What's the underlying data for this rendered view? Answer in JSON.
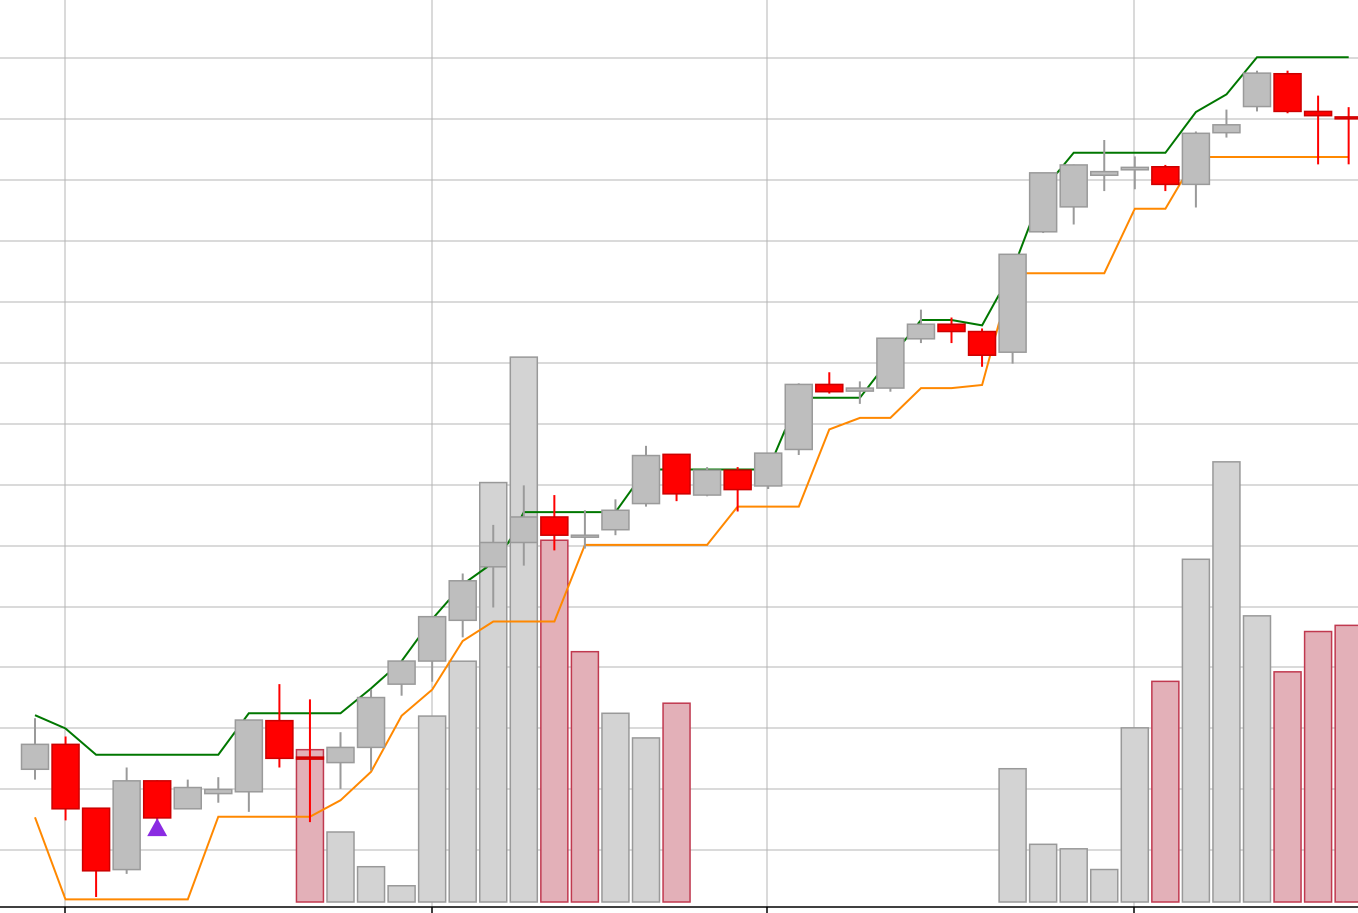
{
  "colors": {
    "background": "#ffffff",
    "grid": "#b4b4b4",
    "bull_fill": "#bebebe",
    "bull_stroke": "#9a9a9a",
    "bear_fill": "#ff0000",
    "bear_stroke": "#cc0000",
    "volume_up_fill": "#d3d3d3",
    "volume_up_stroke": "#999999",
    "volume_down_fill": "#e3b0b8",
    "volume_down_stroke": "#c0394f",
    "upper_channel": "#007700",
    "lower_channel": "#ff8800",
    "signal_marker": "#8a2be2"
  },
  "chart_data": {
    "type": "candlestick",
    "title": "",
    "xlabel": "",
    "ylabel": "",
    "grid": true,
    "x_range": [
      0,
      44
    ],
    "price_range": [
      0,
      15
    ],
    "volume_range": [
      0,
      100
    ],
    "candles": [
      {
        "x": 1,
        "open": 2.15,
        "close": 2.56,
        "high": 2.99,
        "low": 1.98
      },
      {
        "x": 2,
        "open": 2.56,
        "close": 1.5,
        "high": 2.69,
        "low": 1.31
      },
      {
        "x": 3,
        "open": 1.51,
        "close": 0.48,
        "high": 1.52,
        "low": 0.05
      },
      {
        "x": 4,
        "open": 0.5,
        "close": 1.96,
        "high": 2.18,
        "low": 0.43
      },
      {
        "x": 5,
        "open": 1.96,
        "close": 1.35,
        "high": 1.97,
        "low": 1.31
      },
      {
        "x": 6,
        "open": 1.5,
        "close": 1.85,
        "high": 1.98,
        "low": 1.5
      },
      {
        "x": 7,
        "open": 1.75,
        "close": 1.82,
        "high": 2.02,
        "low": 1.6
      },
      {
        "x": 8,
        "open": 1.78,
        "close": 2.96,
        "high": 2.96,
        "low": 1.45
      },
      {
        "x": 9,
        "open": 2.95,
        "close": 2.33,
        "high": 3.55,
        "low": 2.18
      },
      {
        "x": 10,
        "open": 2.35,
        "close": 2.34,
        "high": 3.3,
        "low": 1.28
      },
      {
        "x": 11,
        "open": 2.26,
        "close": 2.51,
        "high": 2.76,
        "low": 1.83
      },
      {
        "x": 12,
        "open": 2.51,
        "close": 3.33,
        "high": 3.46,
        "low": 2.13
      },
      {
        "x": 13,
        "open": 3.55,
        "close": 3.93,
        "high": 3.94,
        "low": 3.36
      },
      {
        "x": 14,
        "open": 3.93,
        "close": 4.66,
        "high": 4.66,
        "low": 3.59
      },
      {
        "x": 15,
        "open": 4.6,
        "close": 5.25,
        "high": 5.37,
        "low": 4.32
      },
      {
        "x": 16,
        "open": 5.48,
        "close": 5.88,
        "high": 6.17,
        "low": 4.81
      },
      {
        "x": 17,
        "open": 5.88,
        "close": 6.3,
        "high": 6.82,
        "low": 5.5
      },
      {
        "x": 18,
        "open": 6.3,
        "close": 6.0,
        "high": 6.66,
        "low": 5.75
      },
      {
        "x": 19,
        "open": 6.0,
        "close": 6.0,
        "high": 6.41,
        "low": 5.78
      },
      {
        "x": 20,
        "open": 6.09,
        "close": 6.41,
        "high": 6.59,
        "low": 6.0
      },
      {
        "x": 21,
        "open": 6.52,
        "close": 7.31,
        "high": 7.47,
        "low": 6.47
      },
      {
        "x": 22,
        "open": 7.33,
        "close": 6.68,
        "high": 7.33,
        "low": 6.56
      },
      {
        "x": 23,
        "open": 6.66,
        "close": 7.07,
        "high": 7.12,
        "low": 6.64
      },
      {
        "x": 24,
        "open": 7.07,
        "close": 6.75,
        "high": 7.12,
        "low": 6.39
      },
      {
        "x": 25,
        "open": 6.81,
        "close": 7.35,
        "high": 7.35,
        "low": 6.76
      },
      {
        "x": 26,
        "open": 7.41,
        "close": 8.48,
        "high": 8.5,
        "low": 7.32
      },
      {
        "x": 27,
        "open": 8.48,
        "close": 8.36,
        "high": 8.68,
        "low": 8.33
      },
      {
        "x": 28,
        "open": 8.37,
        "close": 8.42,
        "high": 8.53,
        "low": 8.16
      },
      {
        "x": 29,
        "open": 8.42,
        "close": 9.24,
        "high": 9.24,
        "low": 8.36
      },
      {
        "x": 30,
        "open": 9.23,
        "close": 9.47,
        "high": 9.71,
        "low": 9.16
      },
      {
        "x": 31,
        "open": 9.47,
        "close": 9.35,
        "high": 9.58,
        "low": 9.16
      },
      {
        "x": 32,
        "open": 9.35,
        "close": 8.96,
        "high": 9.4,
        "low": 8.77
      },
      {
        "x": 33,
        "open": 9.01,
        "close": 10.62,
        "high": 10.62,
        "low": 8.82
      },
      {
        "x": 34,
        "open": 10.99,
        "close": 11.96,
        "high": 11.96,
        "low": 10.97
      },
      {
        "x": 35,
        "open": 11.4,
        "close": 12.09,
        "high": 12.1,
        "low": 11.11
      },
      {
        "x": 36,
        "open": 11.92,
        "close": 11.98,
        "high": 12.5,
        "low": 11.66
      },
      {
        "x": 37,
        "open": 12.01,
        "close": 12.05,
        "high": 12.23,
        "low": 11.69
      },
      {
        "x": 38,
        "open": 12.06,
        "close": 11.77,
        "high": 12.09,
        "low": 11.66
      },
      {
        "x": 39,
        "open": 11.77,
        "close": 12.61,
        "high": 12.64,
        "low": 11.39
      },
      {
        "x": 40,
        "open": 12.62,
        "close": 12.75,
        "high": 13.0,
        "low": 12.54
      },
      {
        "x": 41,
        "open": 13.05,
        "close": 13.6,
        "high": 13.64,
        "low": 12.97
      },
      {
        "x": 42,
        "open": 13.59,
        "close": 12.97,
        "high": 13.64,
        "low": 12.94
      },
      {
        "x": 43,
        "open": 12.97,
        "close": 12.9,
        "high": 13.23,
        "low": 12.1
      },
      {
        "x": 44,
        "open": 12.88,
        "close": 12.85,
        "high": 13.04,
        "low": 12.1
      }
    ],
    "volume": [
      {
        "x": 10,
        "value": 27.2,
        "down": true
      },
      {
        "x": 11,
        "value": 12.5,
        "down": false
      },
      {
        "x": 12,
        "value": 6.3,
        "down": false
      },
      {
        "x": 13,
        "value": 2.9,
        "down": false
      },
      {
        "x": 14,
        "value": 33.2,
        "down": false
      },
      {
        "x": 15,
        "value": 43.0,
        "down": false
      },
      {
        "x": 16,
        "value": 74.9,
        "down": false
      },
      {
        "x": 17,
        "value": 97.3,
        "down": false
      },
      {
        "x": 18,
        "value": 64.6,
        "down": true
      },
      {
        "x": 19,
        "value": 44.7,
        "down": true
      },
      {
        "x": 20,
        "value": 33.7,
        "down": false
      },
      {
        "x": 21,
        "value": 29.3,
        "down": false
      },
      {
        "x": 22,
        "value": 35.5,
        "down": true
      },
      {
        "x": 33,
        "value": 23.8,
        "down": false
      },
      {
        "x": 34,
        "value": 10.3,
        "down": false
      },
      {
        "x": 35,
        "value": 9.5,
        "down": false
      },
      {
        "x": 36,
        "value": 5.8,
        "down": false
      },
      {
        "x": 37,
        "value": 31.1,
        "down": false
      },
      {
        "x": 38,
        "value": 39.4,
        "down": true
      },
      {
        "x": 39,
        "value": 61.2,
        "down": false
      },
      {
        "x": 40,
        "value": 78.6,
        "down": false
      },
      {
        "x": 41,
        "value": 51.1,
        "down": false
      },
      {
        "x": 42,
        "value": 41.1,
        "down": true
      },
      {
        "x": 43,
        "value": 48.3,
        "down": true
      },
      {
        "x": 44,
        "value": 49.4,
        "down": true
      }
    ],
    "upper_channel": [
      {
        "x": 1,
        "y": 3.04
      },
      {
        "x": 2,
        "y": 2.82
      },
      {
        "x": 3,
        "y": 2.39
      },
      {
        "x": 4,
        "y": 2.39
      },
      {
        "x": 5,
        "y": 2.39
      },
      {
        "x": 6,
        "y": 2.39
      },
      {
        "x": 7,
        "y": 2.39
      },
      {
        "x": 8,
        "y": 3.07
      },
      {
        "x": 9,
        "y": 3.07
      },
      {
        "x": 10,
        "y": 3.07
      },
      {
        "x": 11,
        "y": 3.07
      },
      {
        "x": 12,
        "y": 3.48
      },
      {
        "x": 13,
        "y": 3.93
      },
      {
        "x": 14,
        "y": 4.62
      },
      {
        "x": 15,
        "y": 5.19
      },
      {
        "x": 16,
        "y": 5.55
      },
      {
        "x": 16.5,
        "y": 5.88
      },
      {
        "x": 17,
        "y": 6.38
      },
      {
        "x": 18,
        "y": 6.38
      },
      {
        "x": 19,
        "y": 6.38
      },
      {
        "x": 20,
        "y": 6.38
      },
      {
        "x": 21,
        "y": 7.08
      },
      {
        "x": 22,
        "y": 7.08
      },
      {
        "x": 23,
        "y": 7.08
      },
      {
        "x": 24,
        "y": 7.08
      },
      {
        "x": 25,
        "y": 7.08
      },
      {
        "x": 26,
        "y": 8.26
      },
      {
        "x": 27,
        "y": 8.26
      },
      {
        "x": 28,
        "y": 8.26
      },
      {
        "x": 29,
        "y": 8.91
      },
      {
        "x": 30,
        "y": 9.54
      },
      {
        "x": 31,
        "y": 9.54
      },
      {
        "x": 32,
        "y": 9.45
      },
      {
        "x": 33,
        "y": 10.36
      },
      {
        "x": 34,
        "y": 11.68
      },
      {
        "x": 35,
        "y": 12.29
      },
      {
        "x": 36,
        "y": 12.29
      },
      {
        "x": 37,
        "y": 12.29
      },
      {
        "x": 38,
        "y": 12.29
      },
      {
        "x": 39,
        "y": 12.96
      },
      {
        "x": 40,
        "y": 13.25
      },
      {
        "x": 41,
        "y": 13.86
      },
      {
        "x": 42,
        "y": 13.86
      },
      {
        "x": 43,
        "y": 13.86
      },
      {
        "x": 44,
        "y": 13.86
      }
    ],
    "lower_channel": [
      {
        "x": 1,
        "y": 1.36
      },
      {
        "x": 2,
        "y": 0.01
      },
      {
        "x": 3,
        "y": 0.01
      },
      {
        "x": 4,
        "y": 0.01
      },
      {
        "x": 5,
        "y": 0.01
      },
      {
        "x": 6,
        "y": 0.01
      },
      {
        "x": 7,
        "y": 1.37
      },
      {
        "x": 8,
        "y": 1.37
      },
      {
        "x": 9,
        "y": 1.37
      },
      {
        "x": 10,
        "y": 1.37
      },
      {
        "x": 11,
        "y": 1.64
      },
      {
        "x": 12,
        "y": 2.11
      },
      {
        "x": 13,
        "y": 3.03
      },
      {
        "x": 14,
        "y": 3.46
      },
      {
        "x": 15,
        "y": 4.26
      },
      {
        "x": 16,
        "y": 4.58
      },
      {
        "x": 17,
        "y": 4.58
      },
      {
        "x": 18,
        "y": 4.58
      },
      {
        "x": 19,
        "y": 5.84
      },
      {
        "x": 20,
        "y": 5.84
      },
      {
        "x": 21,
        "y": 5.84
      },
      {
        "x": 22,
        "y": 5.84
      },
      {
        "x": 23,
        "y": 5.84
      },
      {
        "x": 24,
        "y": 6.47
      },
      {
        "x": 25,
        "y": 6.47
      },
      {
        "x": 26,
        "y": 6.47
      },
      {
        "x": 27,
        "y": 7.74
      },
      {
        "x": 28,
        "y": 7.93
      },
      {
        "x": 29,
        "y": 7.93
      },
      {
        "x": 30,
        "y": 8.42
      },
      {
        "x": 31,
        "y": 8.42
      },
      {
        "x": 32,
        "y": 8.47
      },
      {
        "x": 33,
        "y": 10.31
      },
      {
        "x": 34,
        "y": 10.31
      },
      {
        "x": 35,
        "y": 10.31
      },
      {
        "x": 36,
        "y": 10.31
      },
      {
        "x": 37,
        "y": 11.37
      },
      {
        "x": 38,
        "y": 11.37
      },
      {
        "x": 39,
        "y": 12.22
      },
      {
        "x": 40,
        "y": 12.22
      },
      {
        "x": 41,
        "y": 12.22
      },
      {
        "x": 42,
        "y": 12.22
      },
      {
        "x": 43,
        "y": 12.22
      },
      {
        "x": 44,
        "y": 12.22
      }
    ],
    "signals": [
      {
        "x": 5,
        "y": 1.28,
        "kind": "buy-triangle"
      }
    ]
  }
}
